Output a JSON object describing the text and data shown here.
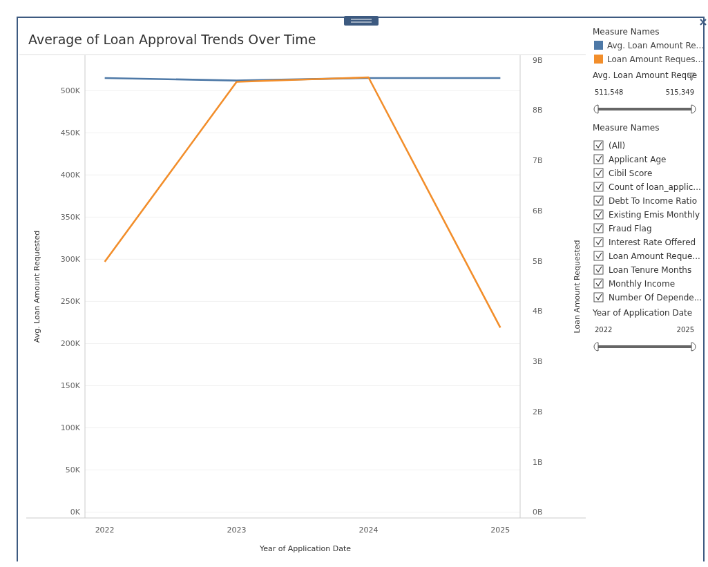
{
  "chart_data": {
    "type": "line",
    "title": "Average of Loan Approval Trends Over Time",
    "xlabel": "Year of Application Date",
    "ylabel": "Avg. Loan Amount Requested",
    "y2label": "Loan Amount Requested",
    "legend_title": "Measure Names",
    "legend": "top right",
    "grid": "y",
    "marker": "none",
    "line_style": "solid",
    "categories": [
      "2022",
      "2023",
      "2024",
      "2025"
    ],
    "series": [
      {
        "name": "Avg. Loan Amount Re...",
        "color": "#4e79a7",
        "values": [
          515000,
          512000,
          515000,
          515000
        ]
      },
      {
        "name": "Loan Amount Reques...",
        "color": "#f28e2b",
        "axis": "y2",
        "values": [
          4980000000,
          8560000000,
          8650000000,
          3670000000
        ]
      }
    ],
    "ylim": [
      -7000,
      542000
    ],
    "yticks": [
      {
        "value": 0,
        "label": "0K"
      },
      {
        "value": 50000,
        "label": "50K"
      },
      {
        "value": 100000,
        "label": "100K"
      },
      {
        "value": 150000,
        "label": "150K"
      },
      {
        "value": 200000,
        "label": "200K"
      },
      {
        "value": 250000,
        "label": "250K"
      },
      {
        "value": 300000,
        "label": "300K"
      },
      {
        "value": 350000,
        "label": "350K"
      },
      {
        "value": 400000,
        "label": "400K"
      },
      {
        "value": 450000,
        "label": "450K"
      },
      {
        "value": 500000,
        "label": "500K"
      }
    ],
    "y2lim": [
      -120000000,
      9090000000
    ],
    "y2ticks": [
      {
        "value": 0,
        "label": "0B"
      },
      {
        "value": 1000000000,
        "label": "1B"
      },
      {
        "value": 2000000000,
        "label": "2B"
      },
      {
        "value": 3000000000,
        "label": "3B"
      },
      {
        "value": 4000000000,
        "label": "4B"
      },
      {
        "value": 5000000000,
        "label": "5B"
      },
      {
        "value": 6000000000,
        "label": "6B"
      },
      {
        "value": 7000000000,
        "label": "7B"
      },
      {
        "value": 8000000000,
        "label": "8B"
      },
      {
        "value": 9000000000,
        "label": "9B"
      }
    ],
    "annotations": [
      "Avg. Loan Amount Reque",
      "511,548",
      "515,349",
      "Measure Names",
      "(All)",
      "Applicant Age",
      "Cibil Score",
      "Count of loan_applic...",
      "Debt To Income Ratio",
      "Existing Emis Monthly",
      "Fraud Flag",
      "Interest Rate Offered",
      "Loan Amount Reque...",
      "Loan Tenure Months",
      "Monthly Income",
      "Number Of Depende...",
      "Year of Application Date",
      "2022",
      "2025"
    ]
  }
}
